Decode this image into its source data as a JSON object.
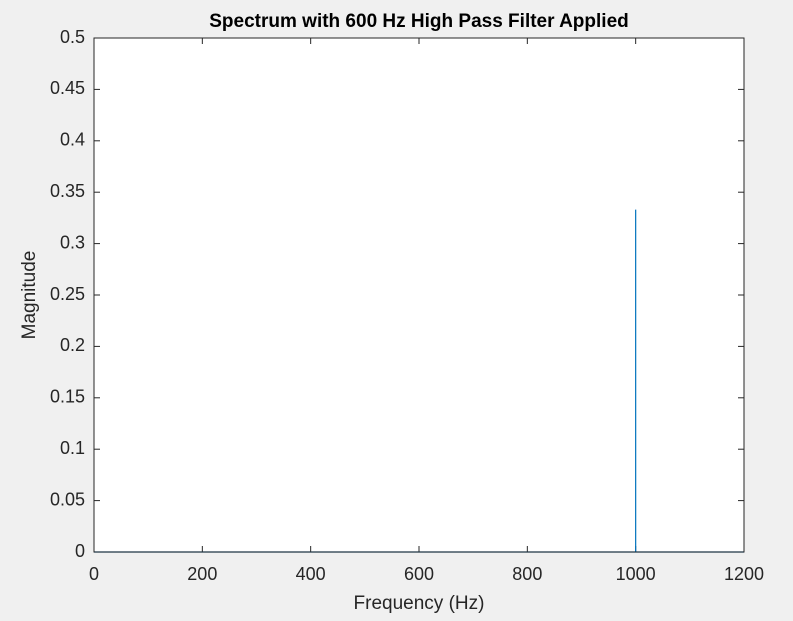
{
  "chart_data": {
    "type": "line",
    "title": "Spectrum with 600 Hz High Pass Filter Applied",
    "x_label": "Frequency (Hz)",
    "y_label": "Magnitude",
    "series": [
      {
        "color": "#0072bd",
        "x": [
          0,
          1000,
          1000,
          1000,
          1200
        ],
        "values": [
          0,
          0,
          0.333,
          0,
          0
        ]
      }
    ],
    "xlim": [
      0,
      1200
    ],
    "xticks": [
      0,
      200,
      400,
      600,
      800,
      1000,
      1200
    ],
    "ylim": [
      0,
      0.5
    ],
    "yticks": [
      0,
      0.05,
      0.1,
      0.15,
      0.2,
      0.25,
      0.3,
      0.35,
      0.4,
      0.45,
      0.5
    ],
    "grid": false
  }
}
